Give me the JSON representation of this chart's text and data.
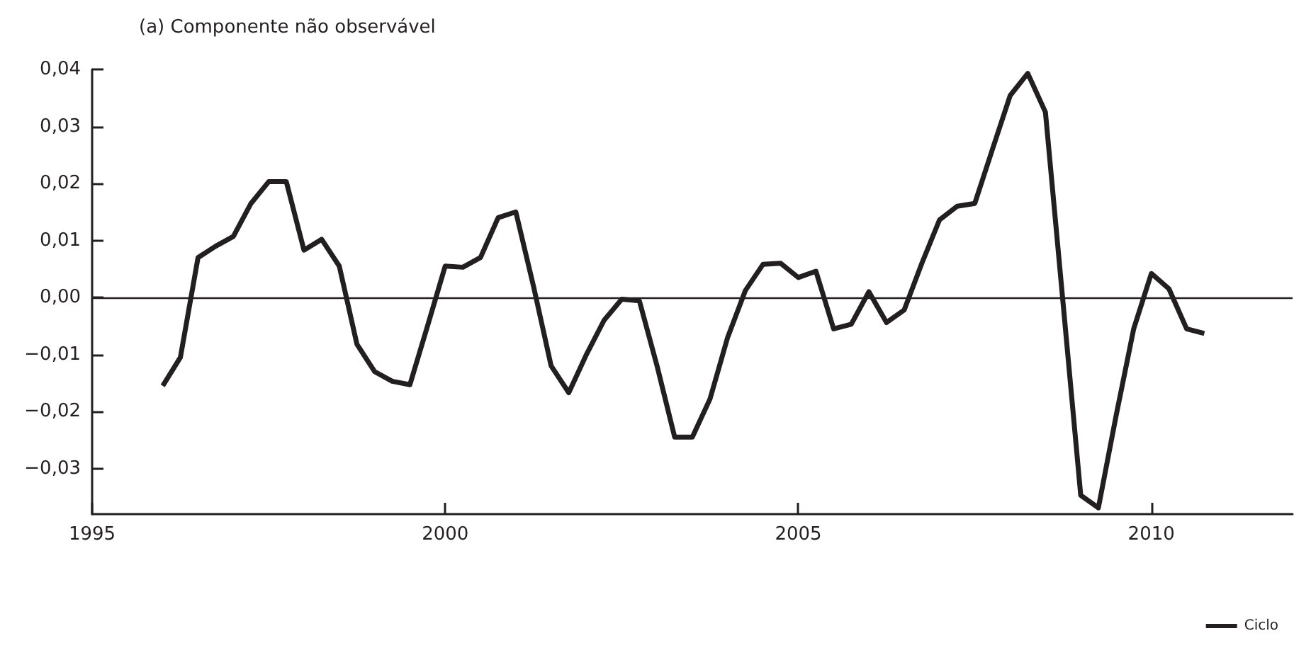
{
  "chart_data": {
    "type": "line",
    "title": "(a) Componente não observável",
    "x": [
      1996,
      1996.25,
      1996.5,
      1996.75,
      1997,
      1997.25,
      1997.5,
      1997.75,
      1998,
      1998.25,
      1998.5,
      1998.75,
      1999,
      1999.25,
      1999.5,
      1999.75,
      2000,
      2000.25,
      2000.5,
      2000.75,
      2001,
      2001.25,
      2001.5,
      2001.75,
      2002,
      2002.25,
      2002.5,
      2002.75,
      2003,
      2003.25,
      2003.5,
      2003.75,
      2004,
      2004.25,
      2004.5,
      2004.75,
      2005,
      2005.25,
      2005.5,
      2005.75,
      2006,
      2006.25,
      2006.5,
      2006.75,
      2007,
      2007.25,
      2007.5,
      2007.75,
      2008,
      2008.25,
      2008.5,
      2008.75,
      2009,
      2009.25,
      2009.5,
      2009.75,
      2010,
      2010.25,
      2010.5,
      2010.75
    ],
    "series": [
      {
        "name": "Ciclo",
        "color": "#231f20",
        "values": [
          -0.0155,
          -0.0105,
          0.007,
          0.009,
          0.0107,
          0.0165,
          0.0203,
          0.0203,
          0.0083,
          0.0102,
          0.0055,
          -0.0082,
          -0.013,
          -0.0147,
          -0.0153,
          -0.005,
          0.0055,
          0.0053,
          0.007,
          0.014,
          0.015,
          0.002,
          -0.012,
          -0.0167,
          -0.01,
          -0.004,
          -0.0003,
          -0.0006,
          -0.012,
          -0.0245,
          -0.0245,
          -0.0178,
          -0.007,
          0.0012,
          0.0058,
          0.006,
          0.0035,
          0.0046,
          -0.0055,
          -0.0047,
          0.001,
          -0.0044,
          -0.0022,
          0.006,
          0.0136,
          0.016,
          0.0165,
          0.026,
          0.0354,
          0.0393,
          0.0325,
          -0.001,
          -0.0347,
          -0.0369,
          -0.0208,
          -0.0055,
          0.0042,
          0.0015,
          -0.0055,
          -0.0063
        ]
      }
    ],
    "xlim": [
      1995,
      2012
    ],
    "xticks": [
      1995,
      2000,
      2005,
      2010
    ],
    "ylim": [
      -0.038,
      0.04
    ],
    "yticks": [
      {
        "value": -0.03,
        "label": "−0,03"
      },
      {
        "value": -0.02,
        "label": "−0,02"
      },
      {
        "value": -0.01,
        "label": "−0,01"
      },
      {
        "value": 0,
        "label": "0,00"
      },
      {
        "value": 0.01,
        "label": "0,01"
      },
      {
        "value": 0.02,
        "label": "0,02"
      },
      {
        "value": 0.03,
        "label": "0,03"
      },
      {
        "value": 0.04,
        "label": "0,04"
      }
    ],
    "ref_lines": [
      {
        "axis": "y",
        "value": 0,
        "color": "#231f20"
      }
    ],
    "grid": false,
    "legend": "bottom right",
    "marker": "none",
    "line_style": "solid"
  }
}
